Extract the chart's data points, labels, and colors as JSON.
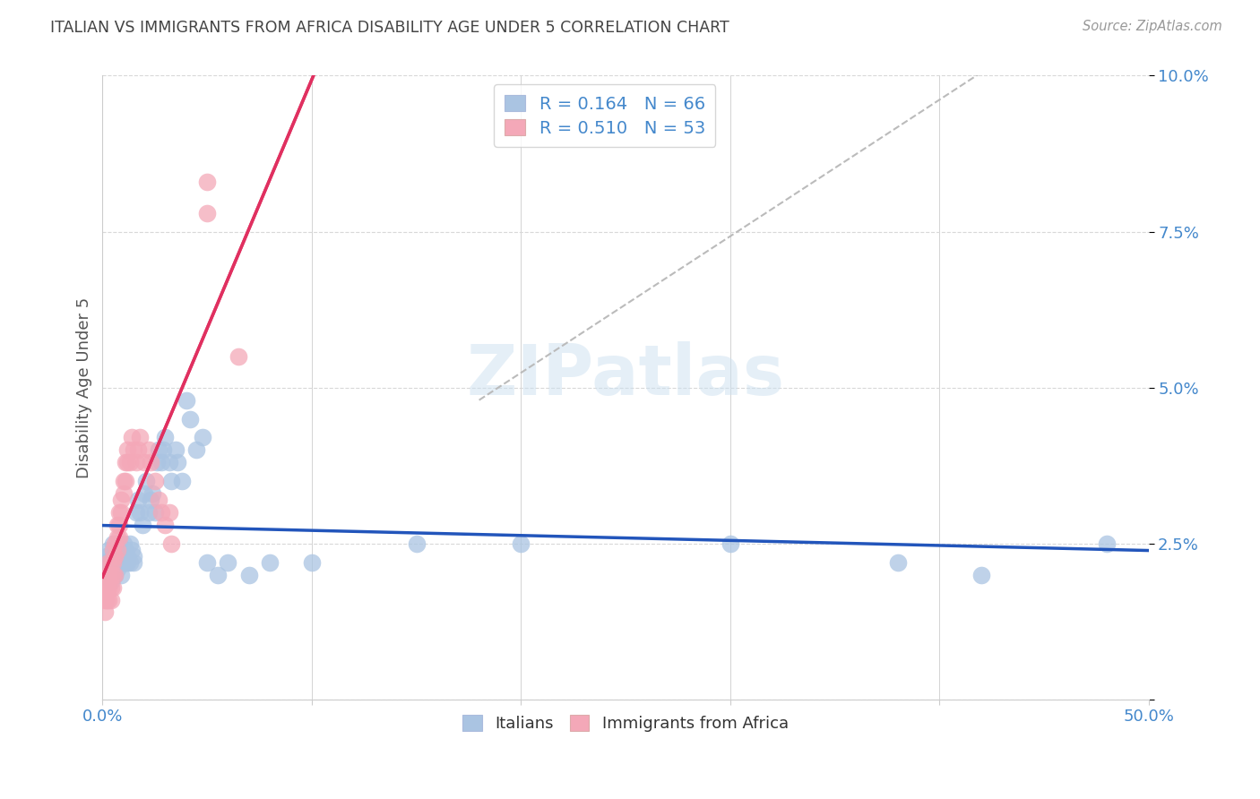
{
  "title": "ITALIAN VS IMMIGRANTS FROM AFRICA DISABILITY AGE UNDER 5 CORRELATION CHART",
  "source": "Source: ZipAtlas.com",
  "ylabel": "Disability Age Under 5",
  "watermark": "ZIPatlas",
  "xlim": [
    0.0,
    0.5
  ],
  "ylim": [
    0.0,
    0.1
  ],
  "italians_R": 0.164,
  "italians_N": 66,
  "africa_R": 0.51,
  "africa_N": 53,
  "italians_color": "#aac4e2",
  "africa_color": "#f4a8b8",
  "trend_italians_color": "#2255bb",
  "trend_africa_color": "#e03060",
  "background_color": "#ffffff",
  "grid_color": "#d8d8d8",
  "title_color": "#444444",
  "axis_label_color": "#4488cc",
  "it_x": [
    0.001,
    0.002,
    0.002,
    0.003,
    0.003,
    0.004,
    0.004,
    0.005,
    0.005,
    0.005,
    0.006,
    0.006,
    0.007,
    0.007,
    0.007,
    0.008,
    0.008,
    0.009,
    0.009,
    0.01,
    0.01,
    0.011,
    0.011,
    0.012,
    0.012,
    0.013,
    0.013,
    0.014,
    0.015,
    0.015,
    0.016,
    0.017,
    0.018,
    0.019,
    0.02,
    0.021,
    0.022,
    0.023,
    0.024,
    0.025,
    0.026,
    0.027,
    0.028,
    0.029,
    0.03,
    0.032,
    0.033,
    0.035,
    0.036,
    0.038,
    0.04,
    0.042,
    0.045,
    0.048,
    0.05,
    0.055,
    0.06,
    0.07,
    0.08,
    0.1,
    0.15,
    0.2,
    0.3,
    0.38,
    0.42,
    0.48
  ],
  "it_y": [
    0.022,
    0.023,
    0.02,
    0.024,
    0.021,
    0.022,
    0.019,
    0.023,
    0.021,
    0.025,
    0.022,
    0.02,
    0.024,
    0.022,
    0.021,
    0.025,
    0.023,
    0.022,
    0.02,
    0.025,
    0.023,
    0.022,
    0.024,
    0.023,
    0.022,
    0.025,
    0.022,
    0.024,
    0.023,
    0.022,
    0.03,
    0.032,
    0.03,
    0.028,
    0.033,
    0.035,
    0.03,
    0.032,
    0.033,
    0.03,
    0.038,
    0.04,
    0.038,
    0.04,
    0.042,
    0.038,
    0.035,
    0.04,
    0.038,
    0.035,
    0.048,
    0.045,
    0.04,
    0.042,
    0.022,
    0.02,
    0.022,
    0.02,
    0.022,
    0.022,
    0.025,
    0.025,
    0.025,
    0.022,
    0.02,
    0.025
  ],
  "af_x": [
    0.001,
    0.001,
    0.001,
    0.002,
    0.002,
    0.002,
    0.003,
    0.003,
    0.003,
    0.003,
    0.004,
    0.004,
    0.004,
    0.004,
    0.005,
    0.005,
    0.005,
    0.005,
    0.006,
    0.006,
    0.006,
    0.007,
    0.007,
    0.007,
    0.008,
    0.008,
    0.008,
    0.009,
    0.009,
    0.01,
    0.01,
    0.011,
    0.011,
    0.012,
    0.012,
    0.013,
    0.014,
    0.015,
    0.016,
    0.017,
    0.018,
    0.02,
    0.022,
    0.023,
    0.025,
    0.027,
    0.028,
    0.03,
    0.032,
    0.033,
    0.05,
    0.05,
    0.065
  ],
  "af_y": [
    0.018,
    0.016,
    0.014,
    0.02,
    0.018,
    0.016,
    0.022,
    0.02,
    0.018,
    0.016,
    0.022,
    0.02,
    0.018,
    0.016,
    0.024,
    0.022,
    0.02,
    0.018,
    0.025,
    0.023,
    0.02,
    0.028,
    0.026,
    0.024,
    0.03,
    0.028,
    0.026,
    0.032,
    0.03,
    0.035,
    0.033,
    0.038,
    0.035,
    0.04,
    0.038,
    0.038,
    0.042,
    0.04,
    0.038,
    0.04,
    0.042,
    0.038,
    0.04,
    0.038,
    0.035,
    0.032,
    0.03,
    0.028,
    0.03,
    0.025,
    0.083,
    0.078,
    0.055
  ]
}
